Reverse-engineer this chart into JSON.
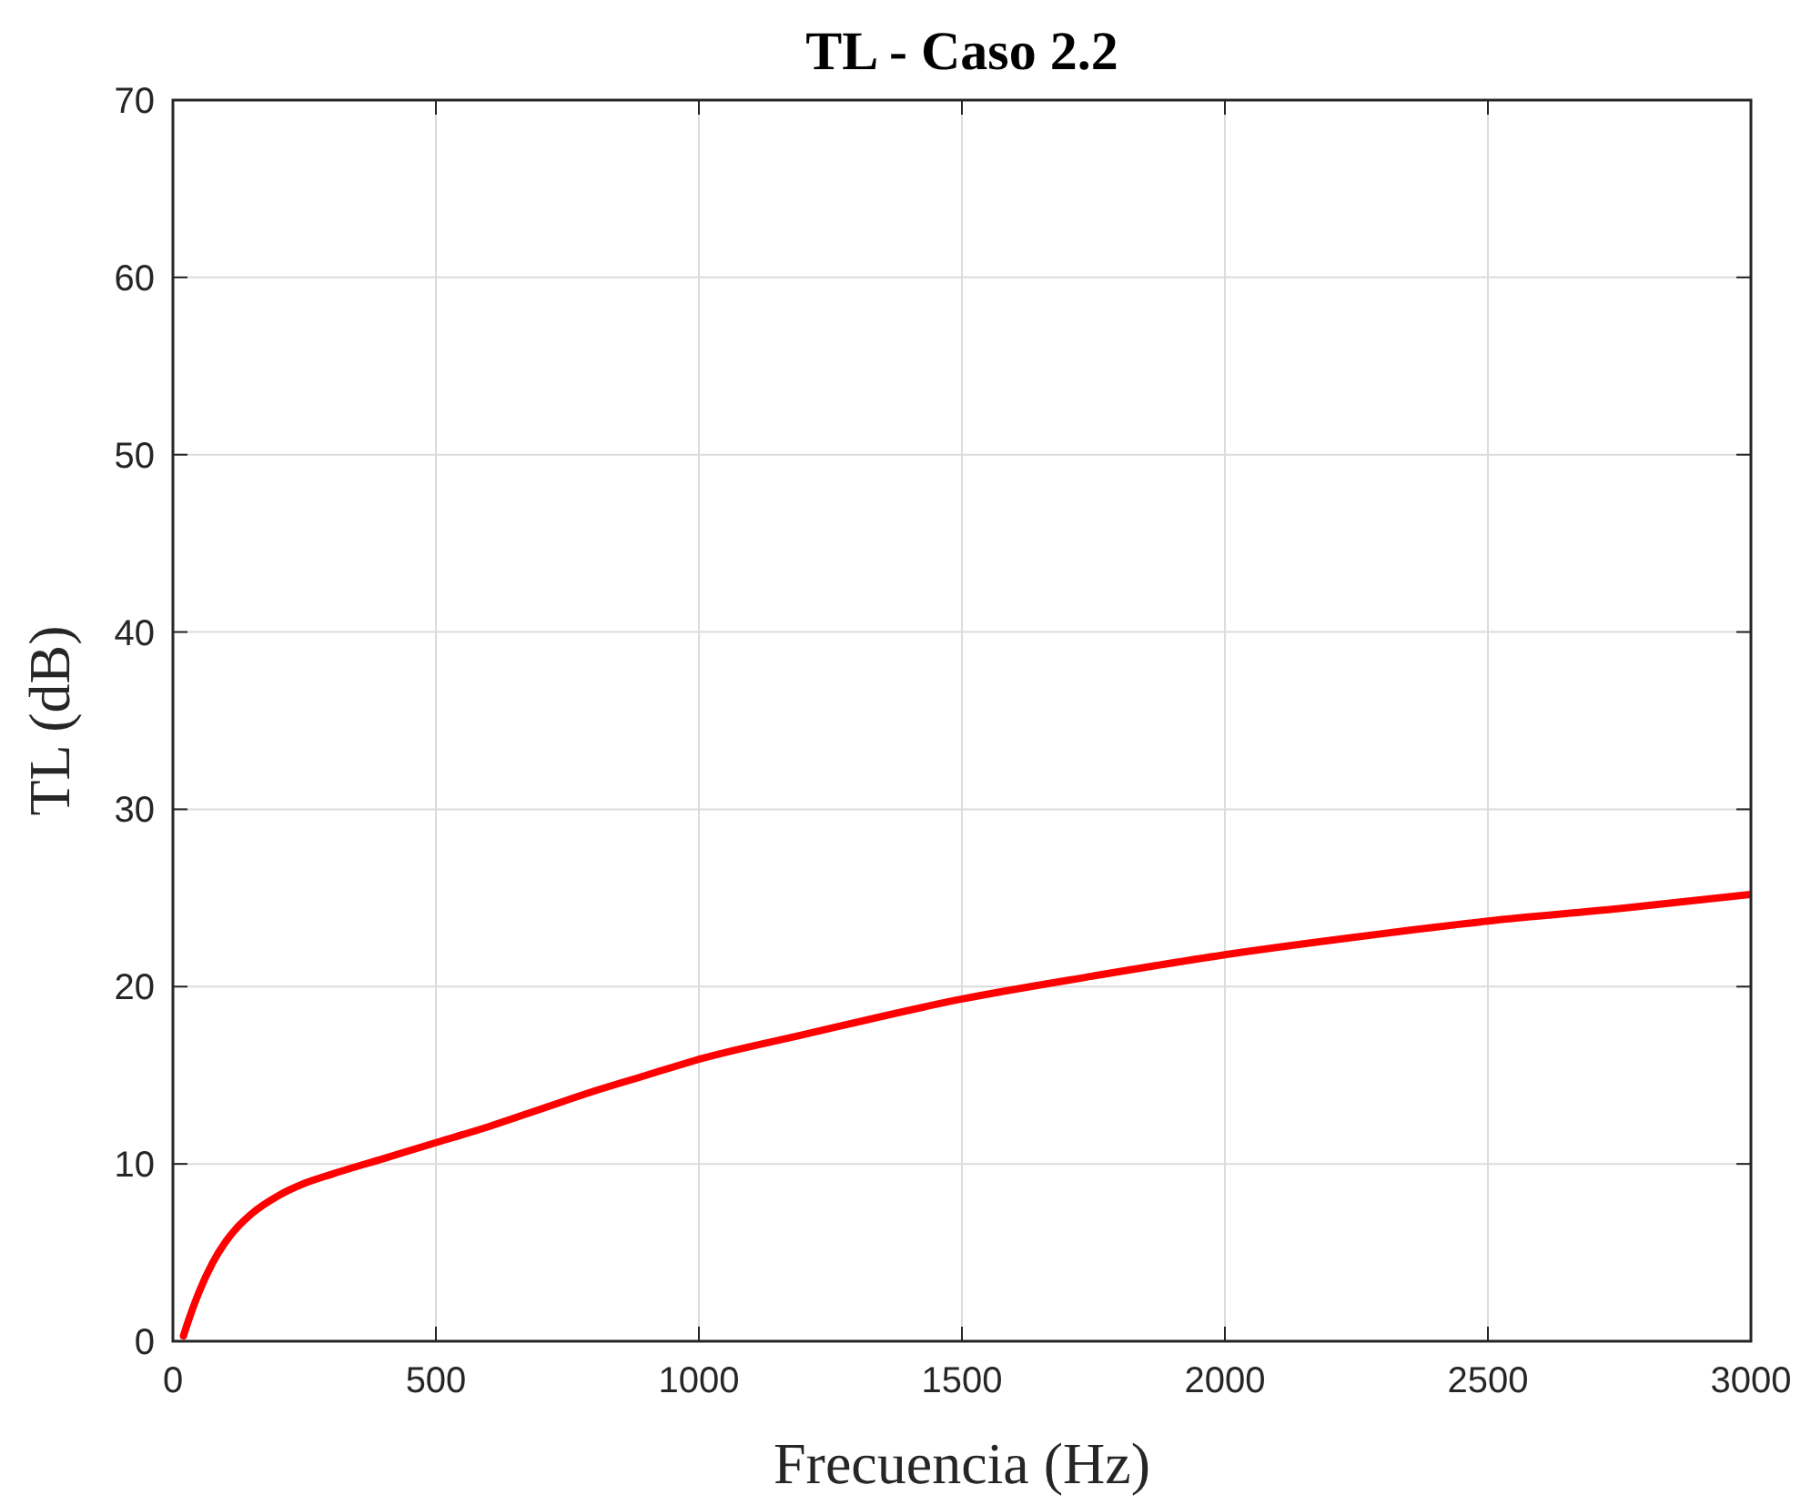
{
  "chart_data": {
    "type": "line",
    "title": "TL - Caso 2.2",
    "xlabel": "Frecuencia (Hz)",
    "ylabel": "TL (dB)",
    "xlim": [
      0,
      3000
    ],
    "ylim": [
      0,
      70
    ],
    "xticks": [
      0,
      500,
      1000,
      1500,
      2000,
      2500,
      3000
    ],
    "yticks": [
      0,
      10,
      20,
      30,
      40,
      50,
      60,
      70
    ],
    "grid": true,
    "line_style": "solid",
    "series": [
      {
        "color": "#ff0000",
        "x": [
          20,
          30,
          50,
          75,
          100,
          125,
          150,
          200,
          250,
          300,
          400,
          500,
          600,
          700,
          800,
          900,
          1000,
          1200,
          1500,
          1750,
          2000,
          2250,
          2500,
          2750,
          3000
        ],
        "values": [
          0.3,
          1.2,
          2.8,
          4.4,
          5.6,
          6.5,
          7.2,
          8.2,
          8.9,
          9.4,
          10.3,
          11.2,
          12.1,
          13.1,
          14.1,
          15.0,
          15.9,
          17.3,
          19.3,
          20.6,
          21.8,
          22.8,
          23.7,
          24.4,
          25.2
        ]
      }
    ]
  }
}
